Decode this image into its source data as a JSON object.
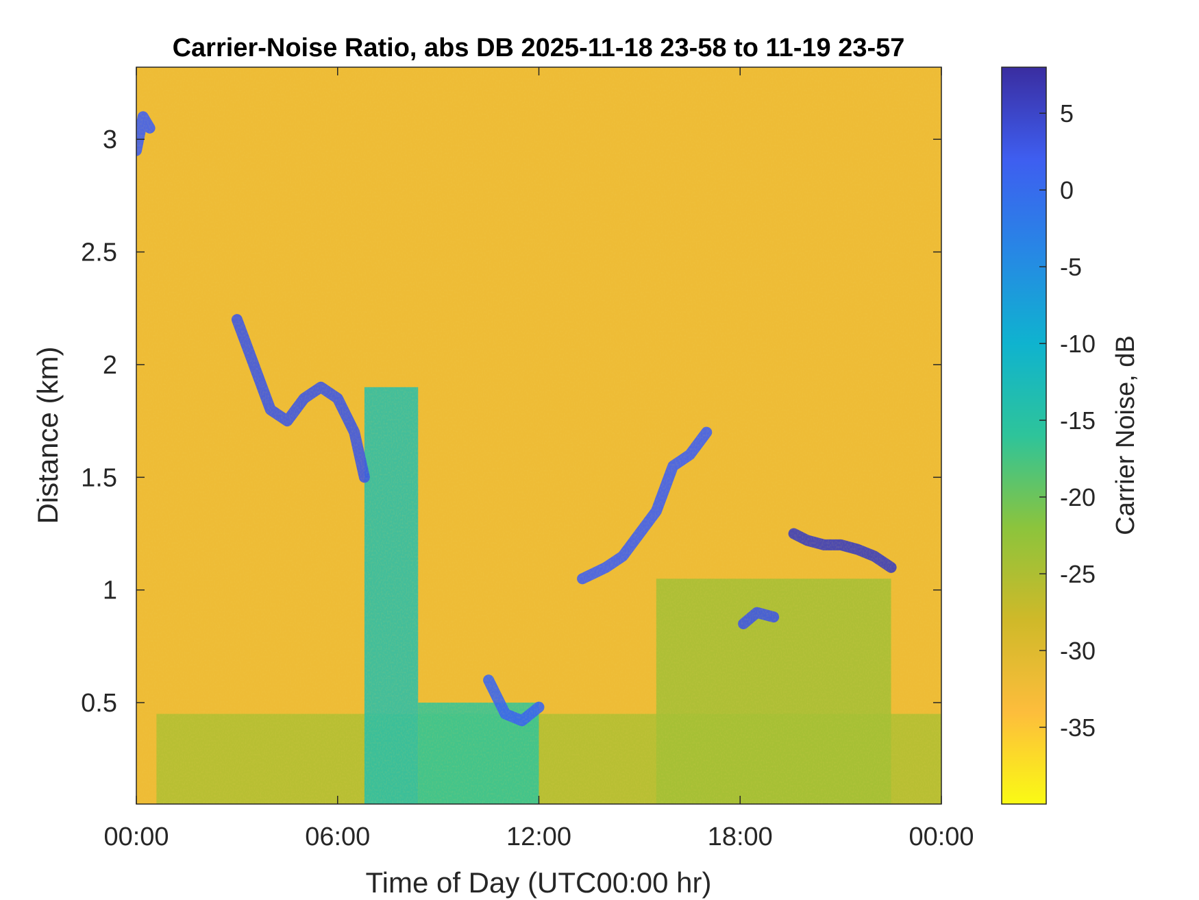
{
  "chart_data": {
    "type": "heatmap",
    "title": "Carrier-Noise Ratio, abs DB 2025-11-18 23-58 to 11-19 23-57",
    "xlabel": "Time of Day (UTC00:00 hr)",
    "ylabel": "Distance (km)",
    "x_unit": "hours",
    "xlim": [
      0,
      24
    ],
    "ylim": [
      0.05,
      3.32
    ],
    "x_ticks": [
      0,
      6,
      12,
      18,
      24
    ],
    "x_tick_labels": [
      "00:00",
      "06:00",
      "12:00",
      "18:00",
      "00:00"
    ],
    "y_ticks": [
      0.5,
      1,
      1.5,
      2,
      2.5,
      3
    ],
    "y_tick_labels": [
      "0.5",
      "1",
      "1.5",
      "2",
      "2.5",
      "3"
    ],
    "colorbar": {
      "label": "Carrier Noise, dB",
      "clim": [
        -40,
        8
      ],
      "ticks": [
        5,
        0,
        -5,
        -10,
        -15,
        -20,
        -25,
        -30,
        -35
      ],
      "tick_labels": [
        "5",
        "0",
        "-5",
        "-10",
        "-15",
        "-20",
        "-25",
        "-30",
        "-35"
      ],
      "colormap": [
        "#fafa14",
        "#fdbd3c",
        "#cfb929",
        "#8cc43c",
        "#2ec49a",
        "#0fb3cf",
        "#2787e5",
        "#3e5ef0",
        "#3a2da0"
      ]
    },
    "background_value_db": -32,
    "grid": false,
    "features": [
      {
        "name": "lower_mixed_layer",
        "x_start": 0.6,
        "x_end": 24.0,
        "height_top_km": 0.45,
        "value_db": -25
      },
      {
        "name": "aerosol_column_morning",
        "x_start": 6.8,
        "x_end": 8.4,
        "height_top_km": 1.9,
        "value_db": -14
      },
      {
        "name": "boundary_layer_bowl",
        "x_start": 8.4,
        "x_end": 12.0,
        "height_top_km": 0.5,
        "value_db": -16
      },
      {
        "name": "afternoon_growth",
        "x_start": 15.5,
        "x_end": 22.5,
        "height_top_km": 1.05,
        "value_db": -24
      },
      {
        "name": "cloud_band_morning",
        "points": [
          [
            3.0,
            2.2
          ],
          [
            3.5,
            2.0
          ],
          [
            4.0,
            1.8
          ],
          [
            4.5,
            1.75
          ],
          [
            5.0,
            1.85
          ],
          [
            5.5,
            1.9
          ],
          [
            6.0,
            1.85
          ],
          [
            6.5,
            1.7
          ],
          [
            6.8,
            1.5
          ]
        ],
        "value_db": 3
      },
      {
        "name": "cloud_band_midday",
        "points": [
          [
            13.3,
            1.05
          ],
          [
            14.0,
            1.1
          ],
          [
            14.5,
            1.15
          ],
          [
            15.0,
            1.25
          ],
          [
            15.5,
            1.35
          ],
          [
            16.0,
            1.55
          ],
          [
            16.5,
            1.6
          ],
          [
            17.0,
            1.7
          ]
        ],
        "value_db": 2
      },
      {
        "name": "cloud_band_evening",
        "points": [
          [
            19.6,
            1.25
          ],
          [
            20.0,
            1.22
          ],
          [
            20.5,
            1.2
          ],
          [
            21.0,
            1.2
          ],
          [
            21.5,
            1.18
          ],
          [
            22.0,
            1.15
          ],
          [
            22.5,
            1.1
          ]
        ],
        "value_db": 6
      },
      {
        "name": "noon_dip_edge",
        "points": [
          [
            10.5,
            0.6
          ],
          [
            11.0,
            0.45
          ],
          [
            11.5,
            0.42
          ],
          [
            12.0,
            0.48
          ]
        ],
        "value_db": 1
      },
      {
        "name": "early_cloud",
        "points": [
          [
            0.0,
            2.95
          ],
          [
            0.2,
            3.1
          ],
          [
            0.4,
            3.05
          ]
        ],
        "value_db": 2
      },
      {
        "name": "low_cloud_evening",
        "points": [
          [
            18.1,
            0.85
          ],
          [
            18.5,
            0.9
          ],
          [
            19.0,
            0.88
          ]
        ],
        "value_db": 3
      }
    ]
  }
}
